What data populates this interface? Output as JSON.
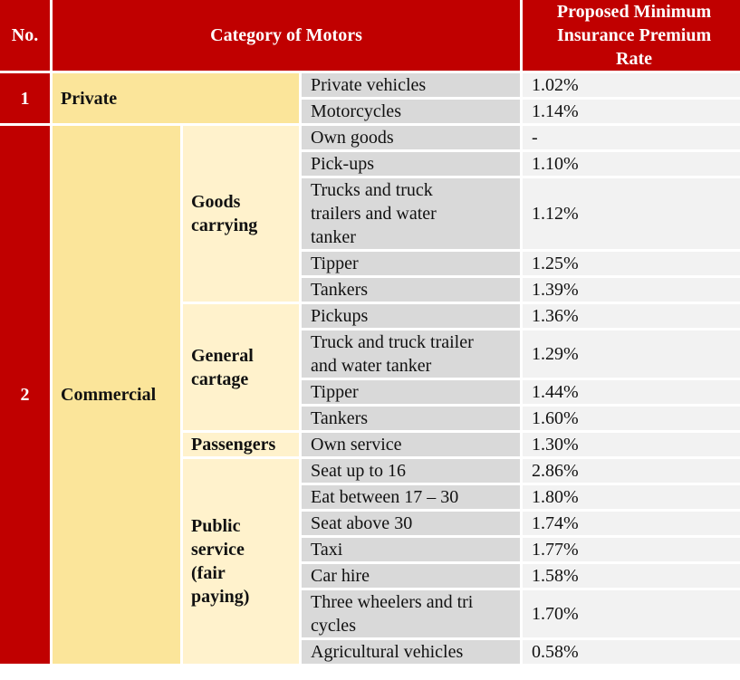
{
  "headers": {
    "no": "No.",
    "category": "Category of Motors",
    "rate_line1": "Proposed Minimum",
    "rate_line2": "Insurance Premium",
    "rate_line3": "Rate"
  },
  "groups": {
    "private": {
      "no": "1",
      "name": "Private"
    },
    "commercial": {
      "no": "2",
      "name": "Commercial"
    }
  },
  "subgroups": {
    "goods_carrying": {
      "line1": "Goods",
      "line2": "carrying"
    },
    "general_cartage": {
      "line1": "General",
      "line2": "cartage"
    },
    "passengers": {
      "line1": "Passengers"
    },
    "public_service": {
      "line1": "Public",
      "line2": "service",
      "line3": "(fair",
      "line4": "paying)"
    }
  },
  "rows": [
    {
      "type": [
        "Private vehicles"
      ],
      "rate": "1.02%"
    },
    {
      "type": [
        "Motorcycles"
      ],
      "rate": "1.14%"
    },
    {
      "type": [
        "Own goods"
      ],
      "rate": "-"
    },
    {
      "type": [
        "Pick-ups"
      ],
      "rate": "1.10%"
    },
    {
      "type": [
        "Trucks and truck",
        "trailers and water",
        "tanker"
      ],
      "rate": "1.12%"
    },
    {
      "type": [
        "Tipper"
      ],
      "rate": "1.25%"
    },
    {
      "type": [
        "Tankers"
      ],
      "rate": "1.39%"
    },
    {
      "type": [
        "Pickups"
      ],
      "rate": "1.36%"
    },
    {
      "type": [
        "Truck and truck trailer",
        "and water tanker"
      ],
      "rate": "1.29%"
    },
    {
      "type": [
        "Tipper"
      ],
      "rate": "1.44%"
    },
    {
      "type": [
        "Tankers"
      ],
      "rate": "1.60%"
    },
    {
      "type": [
        "Own service"
      ],
      "rate": "1.30%"
    },
    {
      "type": [
        "Seat up to 16"
      ],
      "rate": "2.86%"
    },
    {
      "type": [
        "Eat between 17 – 30"
      ],
      "rate": "1.80%"
    },
    {
      "type": [
        "Seat above 30"
      ],
      "rate": "1.74%"
    },
    {
      "type": [
        "Taxi"
      ],
      "rate": "1.77%"
    },
    {
      "type": [
        "Car hire"
      ],
      "rate": "1.58%"
    },
    {
      "type": [
        "Three wheelers and tri",
        "cycles"
      ],
      "rate": "1.70%"
    },
    {
      "type": [
        "Agricultural vehicles"
      ],
      "rate": "0.58%"
    }
  ]
}
